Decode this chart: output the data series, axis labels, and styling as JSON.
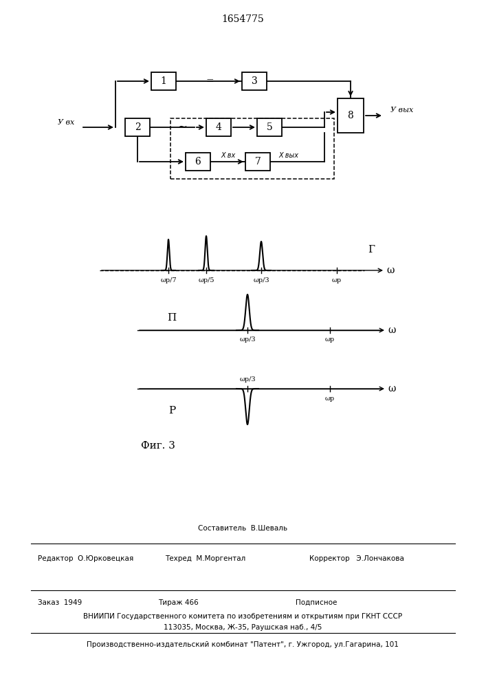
{
  "title": "1654775",
  "fig_label": "Фиг. 3",
  "background_color": "#ffffff",
  "block_labels": [
    "1",
    "2",
    "3",
    "4",
    "5",
    "6",
    "7",
    "8"
  ],
  "label_uvx": "У вх",
  "label_uvyx": "У вых",
  "label_xvx": "Х вх",
  "label_xvyx": "Х вых",
  "label_tilde": "~",
  "label_eq": "=",
  "omega_label": "ω",
  "omega_ticks_g": [
    "ωр/7",
    "ωр/5",
    "ωр/3",
    "ωр"
  ],
  "omega_ticks_pn": [
    "ωр/3",
    "ωр"
  ],
  "graph_g_label": "Г",
  "graph_p_label": "П",
  "graph_r_label": "Р",
  "footer_sostavitel": "Составитель  В.Шеваль",
  "footer_redaktor": "Редактор  О.Юрковецкая",
  "footer_tehred": "Техред  М.Моргентал",
  "footer_korrektor": "Корректор   Э.Лончакова",
  "footer_zakaz": "Заказ  1949",
  "footer_tirazh": "Тираж 466",
  "footer_podpisnoe": "Подписное",
  "footer_vniiipi": "ВНИИПИ Государственного комитета по изобретениям и открытиям при ГКНТ СССР",
  "footer_address": "113035, Москва, Ж-35, Раушская наб., 4/5",
  "footer_patent": "Производственно-издательский комбинат \"Патент\", г. Ужгород, ул.Гагарина, 101"
}
